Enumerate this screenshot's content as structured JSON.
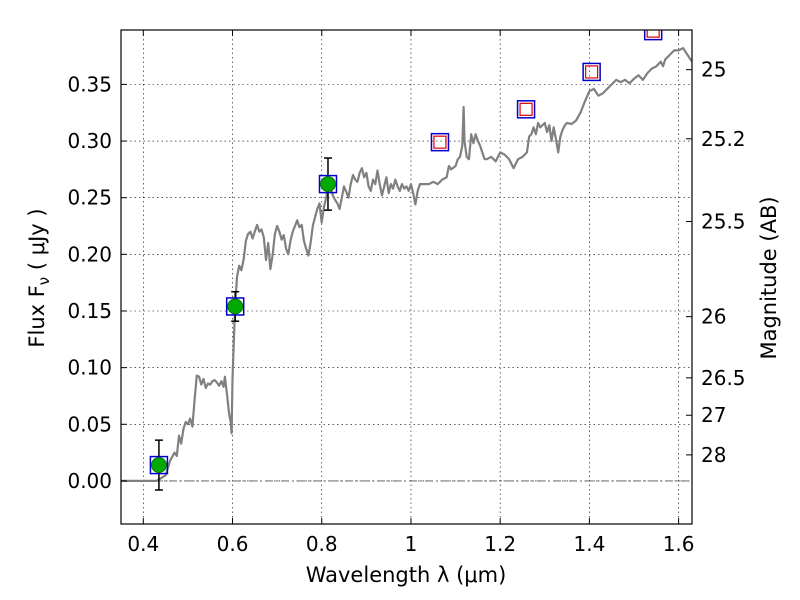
{
  "chart_data": {
    "type": "scatter",
    "xlabel": "Wavelength  λ (μm)",
    "ylabel": "Flux  F",
    "ylabel_sub": "ν",
    "ylabel_unit": "  ( μJy )",
    "y2label": "Magnitude (AB)",
    "xlim": [
      0.35,
      1.63
    ],
    "ylim": [
      -0.038,
      0.398
    ],
    "grid": true,
    "x_ticks": [
      {
        "value": 0.4,
        "label": "0.4"
      },
      {
        "value": 0.6,
        "label": "0.6"
      },
      {
        "value": 0.8,
        "label": "0.8"
      },
      {
        "value": 1.0,
        "label": "1"
      },
      {
        "value": 1.2,
        "label": "1.2"
      },
      {
        "value": 1.4,
        "label": "1.4"
      },
      {
        "value": 1.6,
        "label": "1.6"
      }
    ],
    "y_ticks": [
      {
        "value": 0.0,
        "label": "0.00"
      },
      {
        "value": 0.05,
        "label": "0.05"
      },
      {
        "value": 0.1,
        "label": "0.10"
      },
      {
        "value": 0.15,
        "label": "0.15"
      },
      {
        "value": 0.2,
        "label": "0.20"
      },
      {
        "value": 0.25,
        "label": "0.25"
      },
      {
        "value": 0.3,
        "label": "0.30"
      },
      {
        "value": 0.35,
        "label": "0.35"
      }
    ],
    "y2_ticks": [
      {
        "label": "25",
        "flux": 0.363
      },
      {
        "label": "25.2",
        "flux": 0.302
      },
      {
        "label": "25.5",
        "flux": 0.229
      },
      {
        "label": "26",
        "flux": 0.145
      },
      {
        "label": "26.5",
        "flux": 0.091
      },
      {
        "label": "27",
        "flux": 0.058
      },
      {
        "label": "28",
        "flux": 0.023
      }
    ],
    "series": [
      {
        "kind": "detections",
        "color": "#00aa00",
        "box_color": "#0000cc",
        "points": [
          {
            "x": 0.435,
            "y": 0.014,
            "err": 0.022
          },
          {
            "x": 0.606,
            "y": 0.154,
            "err": 0.013
          },
          {
            "x": 0.814,
            "y": 0.262,
            "err": 0.023
          }
        ]
      },
      {
        "kind": "upper_limits",
        "color": "#dd0000",
        "box_color": "#0000cc",
        "points": [
          {
            "x": 1.065,
            "y": 0.299
          },
          {
            "x": 1.258,
            "y": 0.328
          },
          {
            "x": 1.405,
            "y": 0.361
          },
          {
            "x": 1.543,
            "y": 0.397
          }
        ]
      },
      {
        "kind": "model_spectrum",
        "color": "#808080",
        "points": [
          [
            0.35,
            0.0
          ],
          [
            0.43,
            0.0
          ],
          [
            0.45,
            0.005
          ],
          [
            0.46,
            0.018
          ],
          [
            0.47,
            0.025
          ],
          [
            0.475,
            0.022
          ],
          [
            0.48,
            0.04
          ],
          [
            0.485,
            0.033
          ],
          [
            0.49,
            0.046
          ],
          [
            0.495,
            0.052
          ],
          [
            0.5,
            0.05
          ],
          [
            0.505,
            0.055
          ],
          [
            0.51,
            0.048
          ],
          [
            0.515,
            0.072
          ],
          [
            0.52,
            0.093
          ],
          [
            0.525,
            0.092
          ],
          [
            0.53,
            0.085
          ],
          [
            0.535,
            0.09
          ],
          [
            0.54,
            0.082
          ],
          [
            0.545,
            0.086
          ],
          [
            0.55,
            0.085
          ],
          [
            0.555,
            0.088
          ],
          [
            0.56,
            0.089
          ],
          [
            0.565,
            0.087
          ],
          [
            0.57,
            0.084
          ],
          [
            0.575,
            0.088
          ],
          [
            0.58,
            0.083
          ],
          [
            0.583,
            0.092
          ],
          [
            0.588,
            0.075
          ],
          [
            0.592,
            0.06
          ],
          [
            0.596,
            0.052
          ],
          [
            0.598,
            0.042
          ],
          [
            0.6,
            0.09
          ],
          [
            0.603,
            0.125
          ],
          [
            0.606,
            0.155
          ],
          [
            0.61,
            0.18
          ],
          [
            0.615,
            0.19
          ],
          [
            0.62,
            0.186
          ],
          [
            0.625,
            0.196
          ],
          [
            0.63,
            0.212
          ],
          [
            0.635,
            0.218
          ],
          [
            0.64,
            0.22
          ],
          [
            0.645,
            0.214
          ],
          [
            0.65,
            0.22
          ],
          [
            0.655,
            0.226
          ],
          [
            0.66,
            0.22
          ],
          [
            0.665,
            0.222
          ],
          [
            0.67,
            0.215
          ],
          [
            0.675,
            0.195
          ],
          [
            0.68,
            0.21
          ],
          [
            0.685,
            0.187
          ],
          [
            0.69,
            0.2
          ],
          [
            0.695,
            0.218
          ],
          [
            0.7,
            0.225
          ],
          [
            0.705,
            0.22
          ],
          [
            0.71,
            0.213
          ],
          [
            0.715,
            0.217
          ],
          [
            0.72,
            0.205
          ],
          [
            0.725,
            0.2
          ],
          [
            0.73,
            0.212
          ],
          [
            0.735,
            0.22
          ],
          [
            0.74,
            0.225
          ],
          [
            0.745,
            0.23
          ],
          [
            0.75,
            0.224
          ],
          [
            0.755,
            0.226
          ],
          [
            0.76,
            0.212
          ],
          [
            0.765,
            0.205
          ],
          [
            0.77,
            0.199
          ],
          [
            0.775,
            0.21
          ],
          [
            0.78,
            0.225
          ],
          [
            0.785,
            0.233
          ],
          [
            0.79,
            0.24
          ],
          [
            0.795,
            0.245
          ],
          [
            0.8,
            0.228
          ],
          [
            0.805,
            0.242
          ],
          [
            0.81,
            0.25
          ],
          [
            0.815,
            0.262
          ],
          [
            0.82,
            0.258
          ],
          [
            0.825,
            0.252
          ],
          [
            0.83,
            0.248
          ],
          [
            0.835,
            0.245
          ],
          [
            0.84,
            0.24
          ],
          [
            0.845,
            0.25
          ],
          [
            0.85,
            0.26
          ],
          [
            0.855,
            0.255
          ],
          [
            0.86,
            0.25
          ],
          [
            0.865,
            0.262
          ],
          [
            0.87,
            0.27
          ],
          [
            0.875,
            0.266
          ],
          [
            0.88,
            0.264
          ],
          [
            0.885,
            0.272
          ],
          [
            0.89,
            0.276
          ],
          [
            0.895,
            0.268
          ],
          [
            0.9,
            0.272
          ],
          [
            0.905,
            0.26
          ],
          [
            0.91,
            0.256
          ],
          [
            0.915,
            0.266
          ],
          [
            0.92,
            0.262
          ],
          [
            0.925,
            0.274
          ],
          [
            0.93,
            0.262
          ],
          [
            0.935,
            0.252
          ],
          [
            0.94,
            0.26
          ],
          [
            0.945,
            0.268
          ],
          [
            0.95,
            0.254
          ],
          [
            0.955,
            0.262
          ],
          [
            0.96,
            0.258
          ],
          [
            0.965,
            0.266
          ],
          [
            0.97,
            0.26
          ],
          [
            0.975,
            0.256
          ],
          [
            0.98,
            0.262
          ],
          [
            0.985,
            0.258
          ],
          [
            0.99,
            0.26
          ],
          [
            0.995,
            0.256
          ],
          [
            1.0,
            0.262
          ],
          [
            1.005,
            0.254
          ],
          [
            1.01,
            0.244
          ],
          [
            1.015,
            0.256
          ],
          [
            1.02,
            0.262
          ],
          [
            1.03,
            0.262
          ],
          [
            1.04,
            0.262
          ],
          [
            1.05,
            0.264
          ],
          [
            1.06,
            0.262
          ],
          [
            1.07,
            0.266
          ],
          [
            1.08,
            0.268
          ],
          [
            1.085,
            0.278
          ],
          [
            1.09,
            0.275
          ],
          [
            1.1,
            0.278
          ],
          [
            1.105,
            0.284
          ],
          [
            1.11,
            0.286
          ],
          [
            1.115,
            0.296
          ],
          [
            1.118,
            0.33
          ],
          [
            1.12,
            0.3
          ],
          [
            1.125,
            0.286
          ],
          [
            1.13,
            0.284
          ],
          [
            1.135,
            0.306
          ],
          [
            1.14,
            0.298
          ],
          [
            1.145,
            0.306
          ],
          [
            1.15,
            0.3
          ],
          [
            1.155,
            0.296
          ],
          [
            1.16,
            0.29
          ],
          [
            1.165,
            0.284
          ],
          [
            1.17,
            0.284
          ],
          [
            1.18,
            0.286
          ],
          [
            1.19,
            0.282
          ],
          [
            1.2,
            0.29
          ],
          [
            1.21,
            0.288
          ],
          [
            1.22,
            0.284
          ],
          [
            1.23,
            0.276
          ],
          [
            1.24,
            0.284
          ],
          [
            1.25,
            0.286
          ],
          [
            1.26,
            0.29
          ],
          [
            1.265,
            0.304
          ],
          [
            1.27,
            0.306
          ],
          [
            1.275,
            0.312
          ],
          [
            1.28,
            0.306
          ],
          [
            1.285,
            0.316
          ],
          [
            1.29,
            0.312
          ],
          [
            1.3,
            0.316
          ],
          [
            1.305,
            0.308
          ],
          [
            1.31,
            0.314
          ],
          [
            1.315,
            0.3
          ],
          [
            1.32,
            0.312
          ],
          [
            1.325,
            0.302
          ],
          [
            1.33,
            0.29
          ],
          [
            1.335,
            0.304
          ],
          [
            1.34,
            0.31
          ],
          [
            1.345,
            0.314
          ],
          [
            1.35,
            0.316
          ],
          [
            1.36,
            0.315
          ],
          [
            1.37,
            0.318
          ],
          [
            1.38,
            0.325
          ],
          [
            1.385,
            0.33
          ],
          [
            1.39,
            0.335
          ],
          [
            1.4,
            0.344
          ],
          [
            1.41,
            0.346
          ],
          [
            1.42,
            0.34
          ],
          [
            1.43,
            0.342
          ],
          [
            1.44,
            0.346
          ],
          [
            1.45,
            0.35
          ],
          [
            1.46,
            0.354
          ],
          [
            1.47,
            0.352
          ],
          [
            1.48,
            0.354
          ],
          [
            1.49,
            0.351
          ],
          [
            1.5,
            0.355
          ],
          [
            1.51,
            0.358
          ],
          [
            1.52,
            0.354
          ],
          [
            1.53,
            0.36
          ],
          [
            1.54,
            0.364
          ],
          [
            1.55,
            0.366
          ],
          [
            1.56,
            0.37
          ],
          [
            1.565,
            0.366
          ],
          [
            1.57,
            0.372
          ],
          [
            1.58,
            0.376
          ],
          [
            1.59,
            0.38
          ],
          [
            1.6,
            0.38
          ],
          [
            1.61,
            0.382
          ],
          [
            1.62,
            0.376
          ],
          [
            1.63,
            0.37
          ]
        ]
      }
    ]
  }
}
